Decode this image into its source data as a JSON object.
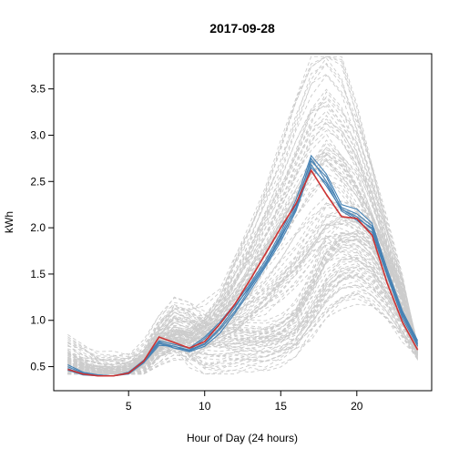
{
  "chart_data": {
    "type": "line",
    "title": "2017-09-28",
    "xlabel": "Hour of Day (24 hours)",
    "ylabel": "kWh",
    "xlim": [
      0.08,
      24.92
    ],
    "ylim": [
      0.24,
      3.88
    ],
    "xticks": [
      5,
      10,
      15,
      20
    ],
    "yticks": [
      0.5,
      1.0,
      1.5,
      2.0,
      2.5,
      3.0,
      3.5
    ],
    "ytick_labels": [
      "0.5",
      "1.0",
      "1.5",
      "2.0",
      "2.5",
      "3.0",
      "3.5"
    ],
    "x": [
      1,
      2,
      3,
      4,
      5,
      6,
      7,
      8,
      9,
      10,
      11,
      12,
      13,
      14,
      15,
      16,
      17,
      18,
      19,
      20,
      21,
      22,
      23,
      24
    ],
    "grid": false,
    "legend": "none",
    "background_style": {
      "color": "#cccccc",
      "dash": "dashed",
      "count": 120
    },
    "background_profiles": [
      {
        "values": [
          0.55,
          0.46,
          0.43,
          0.42,
          0.45,
          0.55,
          0.72,
          0.8,
          0.76,
          0.74,
          0.73,
          0.74,
          0.76,
          0.78,
          0.8,
          0.9,
          1.15,
          1.45,
          1.6,
          1.62,
          1.52,
          1.3,
          1.0,
          0.7
        ]
      },
      {
        "values": [
          0.5,
          0.44,
          0.42,
          0.41,
          0.44,
          0.56,
          0.8,
          0.95,
          0.92,
          0.82,
          0.78,
          0.76,
          0.76,
          0.78,
          0.82,
          0.96,
          1.25,
          1.55,
          1.75,
          1.78,
          1.66,
          1.4,
          1.05,
          0.72
        ]
      },
      {
        "values": [
          0.62,
          0.54,
          0.5,
          0.48,
          0.5,
          0.6,
          0.9,
          1.1,
          1.05,
          0.95,
          0.9,
          0.88,
          0.85,
          0.86,
          0.92,
          1.05,
          1.35,
          1.7,
          1.85,
          1.85,
          1.72,
          1.45,
          1.1,
          0.76
        ]
      },
      {
        "values": [
          0.8,
          0.7,
          0.62,
          0.58,
          0.6,
          0.7,
          0.98,
          1.16,
          1.12,
          1.0,
          0.95,
          0.93,
          0.92,
          0.95,
          1.0,
          1.15,
          1.45,
          1.8,
          1.9,
          1.92,
          1.8,
          1.5,
          1.15,
          0.82
        ]
      },
      {
        "values": [
          0.46,
          0.42,
          0.4,
          0.4,
          0.43,
          0.52,
          0.7,
          0.76,
          0.72,
          0.7,
          0.7,
          0.71,
          0.72,
          0.74,
          0.76,
          0.84,
          1.0,
          1.25,
          1.4,
          1.45,
          1.38,
          1.2,
          0.95,
          0.65
        ]
      },
      {
        "values": [
          0.52,
          0.46,
          0.44,
          0.43,
          0.46,
          0.56,
          0.74,
          0.8,
          0.6,
          0.48,
          0.48,
          0.5,
          0.52,
          0.55,
          0.6,
          0.72,
          0.95,
          1.2,
          1.35,
          1.4,
          1.32,
          1.15,
          0.9,
          0.62
        ]
      },
      {
        "values": [
          0.48,
          0.42,
          0.41,
          0.4,
          0.43,
          0.5,
          0.66,
          0.78,
          0.74,
          0.84,
          1.05,
          1.35,
          1.7,
          2.05,
          2.35,
          2.7,
          3.0,
          3.15,
          2.95,
          2.7,
          2.3,
          1.8,
          1.3,
          0.8
        ]
      },
      {
        "values": [
          0.6,
          0.52,
          0.48,
          0.46,
          0.48,
          0.58,
          0.78,
          0.9,
          0.86,
          1.0,
          1.2,
          1.55,
          1.9,
          2.3,
          2.75,
          3.2,
          3.6,
          3.85,
          3.62,
          3.1,
          2.5,
          1.9,
          1.35,
          0.85
        ]
      },
      {
        "values": [
          0.5,
          0.44,
          0.42,
          0.41,
          0.44,
          0.52,
          0.72,
          0.85,
          0.82,
          0.9,
          1.05,
          1.25,
          1.5,
          1.8,
          2.1,
          2.4,
          2.7,
          2.9,
          2.78,
          2.5,
          2.15,
          1.7,
          1.25,
          0.75
        ]
      },
      {
        "values": [
          0.56,
          0.48,
          0.45,
          0.44,
          0.46,
          0.56,
          0.76,
          0.88,
          0.84,
          0.95,
          1.12,
          1.4,
          1.7,
          2.0,
          2.3,
          2.6,
          2.95,
          3.2,
          3.05,
          2.8,
          2.35,
          1.85,
          1.3,
          0.78
        ]
      },
      {
        "values": [
          0.46,
          0.42,
          0.4,
          0.4,
          0.42,
          0.5,
          0.68,
          0.8,
          0.78,
          0.86,
          1.0,
          1.2,
          1.42,
          1.65,
          1.9,
          2.15,
          2.4,
          2.55,
          2.42,
          2.2,
          1.95,
          1.6,
          1.2,
          0.7
        ]
      },
      {
        "values": [
          0.7,
          0.62,
          0.56,
          0.54,
          0.56,
          0.66,
          0.9,
          1.05,
          1.0,
          1.05,
          1.2,
          1.5,
          1.8,
          2.1,
          2.45,
          2.85,
          3.3,
          3.4,
          3.2,
          2.9,
          2.45,
          1.9,
          1.35,
          0.8
        ]
      },
      {
        "values": [
          0.48,
          0.43,
          0.41,
          0.4,
          0.43,
          0.51,
          0.7,
          0.8,
          0.78,
          0.82,
          0.92,
          1.05,
          1.22,
          1.4,
          1.6,
          1.8,
          2.0,
          2.12,
          2.05,
          1.95,
          1.8,
          1.55,
          1.2,
          0.68
        ]
      },
      {
        "values": [
          0.52,
          0.46,
          0.43,
          0.42,
          0.45,
          0.55,
          0.75,
          0.84,
          0.8,
          0.84,
          0.9,
          1.0,
          1.1,
          1.22,
          1.35,
          1.5,
          1.7,
          1.92,
          1.98,
          1.95,
          1.82,
          1.55,
          1.18,
          0.7
        ]
      },
      {
        "values": [
          0.54,
          0.47,
          0.44,
          0.43,
          0.45,
          0.54,
          0.72,
          0.78,
          0.75,
          0.78,
          0.85,
          0.96,
          1.08,
          1.2,
          1.35,
          1.55,
          1.8,
          2.05,
          2.1,
          2.05,
          1.9,
          1.6,
          1.22,
          0.72
        ]
      }
    ],
    "series": [
      {
        "color": "#4682b4",
        "values": [
          0.52,
          0.44,
          0.41,
          0.4,
          0.44,
          0.57,
          0.78,
          0.74,
          0.7,
          0.82,
          0.98,
          1.18,
          1.4,
          1.65,
          1.95,
          2.3,
          2.78,
          2.58,
          2.25,
          2.2,
          2.05,
          1.55,
          1.1,
          0.78
        ]
      },
      {
        "color": "#4682b4",
        "values": [
          0.5,
          0.43,
          0.41,
          0.4,
          0.44,
          0.56,
          0.76,
          0.72,
          0.68,
          0.75,
          0.92,
          1.14,
          1.38,
          1.62,
          1.92,
          2.25,
          2.72,
          2.55,
          2.2,
          2.1,
          2.0,
          1.5,
          1.05,
          0.74
        ]
      },
      {
        "color": "#4682b4",
        "values": [
          0.48,
          0.42,
          0.4,
          0.4,
          0.43,
          0.55,
          0.77,
          0.7,
          0.66,
          0.72,
          0.86,
          1.08,
          1.32,
          1.58,
          1.85,
          2.18,
          2.65,
          2.48,
          2.18,
          2.08,
          1.95,
          1.48,
          1.02,
          0.72
        ]
      },
      {
        "color": "#4682b4",
        "values": [
          0.47,
          0.42,
          0.4,
          0.4,
          0.43,
          0.55,
          0.75,
          0.7,
          0.68,
          0.8,
          0.96,
          1.16,
          1.36,
          1.6,
          1.88,
          2.22,
          2.75,
          2.5,
          2.22,
          2.15,
          2.02,
          1.52,
          1.08,
          0.76
        ]
      },
      {
        "color": "#4682b4",
        "values": [
          0.46,
          0.41,
          0.4,
          0.4,
          0.42,
          0.54,
          0.73,
          0.72,
          0.67,
          0.74,
          0.9,
          1.1,
          1.35,
          1.6,
          1.9,
          2.2,
          2.68,
          2.45,
          2.2,
          2.12,
          1.98,
          1.5,
          1.06,
          0.74
        ]
      },
      {
        "color": "#cd3333",
        "values": [
          0.47,
          0.42,
          0.4,
          0.4,
          0.43,
          0.56,
          0.82,
          0.76,
          0.7,
          0.77,
          0.96,
          1.18,
          1.44,
          1.72,
          2.0,
          2.26,
          2.62,
          2.36,
          2.12,
          2.1,
          1.92,
          1.4,
          0.98,
          0.68
        ]
      }
    ]
  }
}
